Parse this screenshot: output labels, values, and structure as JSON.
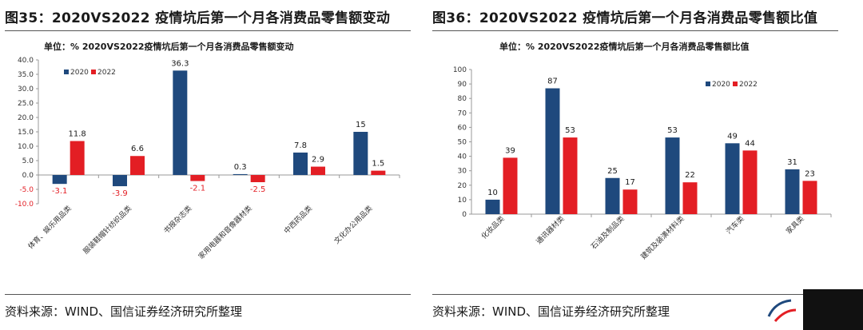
{
  "charts": [
    {
      "figure_title": "图35：2020VS2022 疫情坑后第一个月各消费品零售额变动",
      "source": "资料来源：WIND、国信证券经济研究所整理",
      "chart_data": {
        "type": "bar",
        "title": "单位：%  2020VS2022疫情坑后第一个月各消费品零售额变动",
        "categories": [
          "体育、娱乐用品类",
          "服装鞋帽针纺织品类",
          "书报杂志类",
          "家用电器和音像器材类",
          "中西药品类",
          "文化办公用品类"
        ],
        "series": [
          {
            "name": "2020",
            "color": "#1f497d",
            "values": [
              -3.1,
              -3.9,
              36.3,
              0.3,
              7.8,
              15
            ]
          },
          {
            "name": "2022",
            "color": "#e31e24",
            "values": [
              11.8,
              6.6,
              -2.1,
              -2.5,
              2.9,
              1.5
            ]
          }
        ],
        "data_labels": {
          "2020": [
            "-3.1",
            "-3.9",
            "36.3",
            "0.3",
            "7.8",
            "15"
          ],
          "2022": [
            "11.8",
            "6.6",
            "-2.1",
            "-2.5",
            "2.9",
            "1.5"
          ]
        },
        "ylim": [
          -10,
          40
        ],
        "yticks": [
          "40.0",
          "35.0",
          "30.0",
          "25.0",
          "20.0",
          "15.0",
          "10.0",
          "5.0",
          "0.0",
          "-5.0",
          "-10.0"
        ],
        "grid": false,
        "legend_position": "top-left",
        "negative_label_color": "#e31e24"
      }
    },
    {
      "figure_title": "图36：2020VS2022 疫情坑后第一个月各消费品零售额比值",
      "source": "资料来源：WIND、国信证券经济研究所整理",
      "chart_data": {
        "type": "bar",
        "title": "单位：%  2020VS2022疫情坑后第一个月各消费品零售额比值",
        "categories": [
          "化妆品类",
          "通讯器材类",
          "石油及制品类",
          "建筑及装潢材料类",
          "汽车类",
          "家具类"
        ],
        "series": [
          {
            "name": "2020",
            "color": "#1f497d",
            "values": [
              10,
              87,
              25,
              53,
              49,
              31
            ]
          },
          {
            "name": "2022",
            "color": "#e31e24",
            "values": [
              39,
              53,
              17,
              22,
              44,
              23
            ]
          }
        ],
        "data_labels": {
          "2020": [
            "10",
            "87",
            "25",
            "53",
            "49",
            "31"
          ],
          "2022": [
            "39",
            "53",
            "17",
            "22",
            "44",
            "23"
          ]
        },
        "ylim": [
          0,
          100
        ],
        "yticks": [
          "100",
          "90",
          "80",
          "70",
          "60",
          "50",
          "40",
          "30",
          "20",
          "10",
          "0"
        ],
        "grid": false,
        "legend_position": "top-right"
      }
    }
  ]
}
